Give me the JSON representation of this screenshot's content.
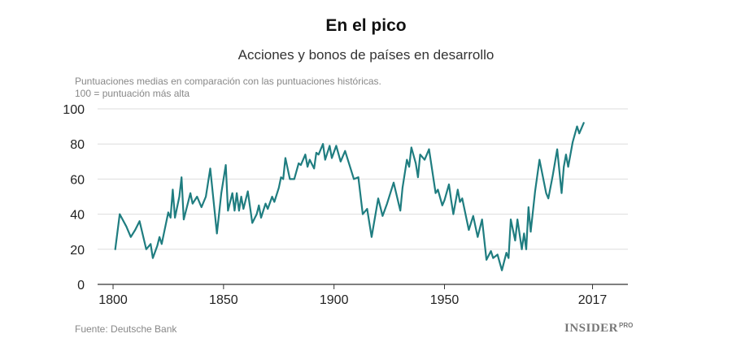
{
  "chart_data": {
    "type": "line",
    "title": "En el pico",
    "subtitle": "Acciones y bonos de países en desarrollo",
    "ylabel_lines": [
      "Puntuaciones medias en comparación con las puntuaciones históricas.",
      "100 = puntuación más alta"
    ],
    "xlim": [
      1793,
      2033
    ],
    "ylim": [
      0,
      100
    ],
    "x_ticks": [
      1800,
      1850,
      1900,
      1950,
      2017
    ],
    "x_tick_labels": [
      "1800",
      "1850",
      "1900",
      "1950",
      "2017"
    ],
    "y_ticks": [
      0,
      20,
      40,
      60,
      80,
      100
    ],
    "y_tick_labels": [
      "0",
      "20",
      "40",
      "60",
      "80",
      "100"
    ],
    "grid": true,
    "line_color": "#1f7d80",
    "series": [
      {
        "values": [
          [
            1801,
            20
          ],
          [
            1803,
            40
          ],
          [
            1806,
            33
          ],
          [
            1808,
            27
          ],
          [
            1810,
            31
          ],
          [
            1812,
            36
          ],
          [
            1815,
            20
          ],
          [
            1817,
            23
          ],
          [
            1818,
            15
          ],
          [
            1820,
            22
          ],
          [
            1821,
            27
          ],
          [
            1822,
            23
          ],
          [
            1825,
            41
          ],
          [
            1826,
            38
          ],
          [
            1827,
            54
          ],
          [
            1828,
            38
          ],
          [
            1830,
            50
          ],
          [
            1831,
            61
          ],
          [
            1832,
            37
          ],
          [
            1834,
            47
          ],
          [
            1835,
            52
          ],
          [
            1836,
            46
          ],
          [
            1838,
            50
          ],
          [
            1840,
            44
          ],
          [
            1842,
            50
          ],
          [
            1844,
            66
          ],
          [
            1847,
            29
          ],
          [
            1849,
            52
          ],
          [
            1851,
            68
          ],
          [
            1852,
            42
          ],
          [
            1854,
            52
          ],
          [
            1855,
            42
          ],
          [
            1856,
            52
          ],
          [
            1857,
            42
          ],
          [
            1858,
            50
          ],
          [
            1859,
            43
          ],
          [
            1861,
            53
          ],
          [
            1863,
            35
          ],
          [
            1865,
            40
          ],
          [
            1866,
            45
          ],
          [
            1867,
            38
          ],
          [
            1869,
            46
          ],
          [
            1870,
            43
          ],
          [
            1872,
            50
          ],
          [
            1873,
            47
          ],
          [
            1875,
            55
          ],
          [
            1876,
            61
          ],
          [
            1877,
            60
          ],
          [
            1878,
            72
          ],
          [
            1880,
            60
          ],
          [
            1882,
            60
          ],
          [
            1884,
            69
          ],
          [
            1885,
            68
          ],
          [
            1887,
            74
          ],
          [
            1888,
            67
          ],
          [
            1889,
            71
          ],
          [
            1891,
            66
          ],
          [
            1892,
            75
          ],
          [
            1893,
            74
          ],
          [
            1895,
            80
          ],
          [
            1896,
            71
          ],
          [
            1898,
            79
          ],
          [
            1899,
            72
          ],
          [
            1901,
            79
          ],
          [
            1903,
            70
          ],
          [
            1905,
            76
          ],
          [
            1907,
            68
          ],
          [
            1909,
            60
          ],
          [
            1911,
            61
          ],
          [
            1913,
            40
          ],
          [
            1915,
            43
          ],
          [
            1917,
            27
          ],
          [
            1920,
            49
          ],
          [
            1922,
            39
          ],
          [
            1924,
            46
          ],
          [
            1927,
            58
          ],
          [
            1930,
            42
          ],
          [
            1931,
            55
          ],
          [
            1933,
            71
          ],
          [
            1934,
            67
          ],
          [
            1935,
            78
          ],
          [
            1937,
            69
          ],
          [
            1938,
            61
          ],
          [
            1939,
            74
          ],
          [
            1941,
            71
          ],
          [
            1943,
            77
          ],
          [
            1946,
            52
          ],
          [
            1947,
            54
          ],
          [
            1949,
            45
          ],
          [
            1950,
            48
          ],
          [
            1952,
            57
          ],
          [
            1953,
            48
          ],
          [
            1954,
            40
          ],
          [
            1956,
            54
          ],
          [
            1957,
            47
          ],
          [
            1958,
            49
          ],
          [
            1961,
            31
          ],
          [
            1963,
            39
          ],
          [
            1965,
            27
          ],
          [
            1967,
            37
          ],
          [
            1969,
            14
          ],
          [
            1971,
            19
          ],
          [
            1972,
            15
          ],
          [
            1974,
            17
          ],
          [
            1976,
            8
          ],
          [
            1978,
            18
          ],
          [
            1979,
            15
          ],
          [
            1980,
            37
          ],
          [
            1982,
            25
          ],
          [
            1983,
            37
          ],
          [
            1985,
            20
          ],
          [
            1986,
            29
          ],
          [
            1987,
            20
          ],
          [
            1988,
            44
          ],
          [
            1989,
            30
          ],
          [
            1991,
            53
          ],
          [
            1993,
            71
          ],
          [
            1996,
            52
          ],
          [
            1997,
            49
          ],
          [
            1999,
            62
          ],
          [
            2001,
            77
          ],
          [
            2003,
            52
          ],
          [
            2004,
            67
          ],
          [
            2005,
            74
          ],
          [
            2006,
            67
          ],
          [
            2008,
            81
          ],
          [
            2010,
            90
          ],
          [
            2011,
            86
          ],
          [
            2013,
            92
          ]
        ]
      }
    ],
    "source": "Fuente: Deutsche Bank",
    "brand": "INSIDER",
    "brand_sup": "PRO"
  }
}
